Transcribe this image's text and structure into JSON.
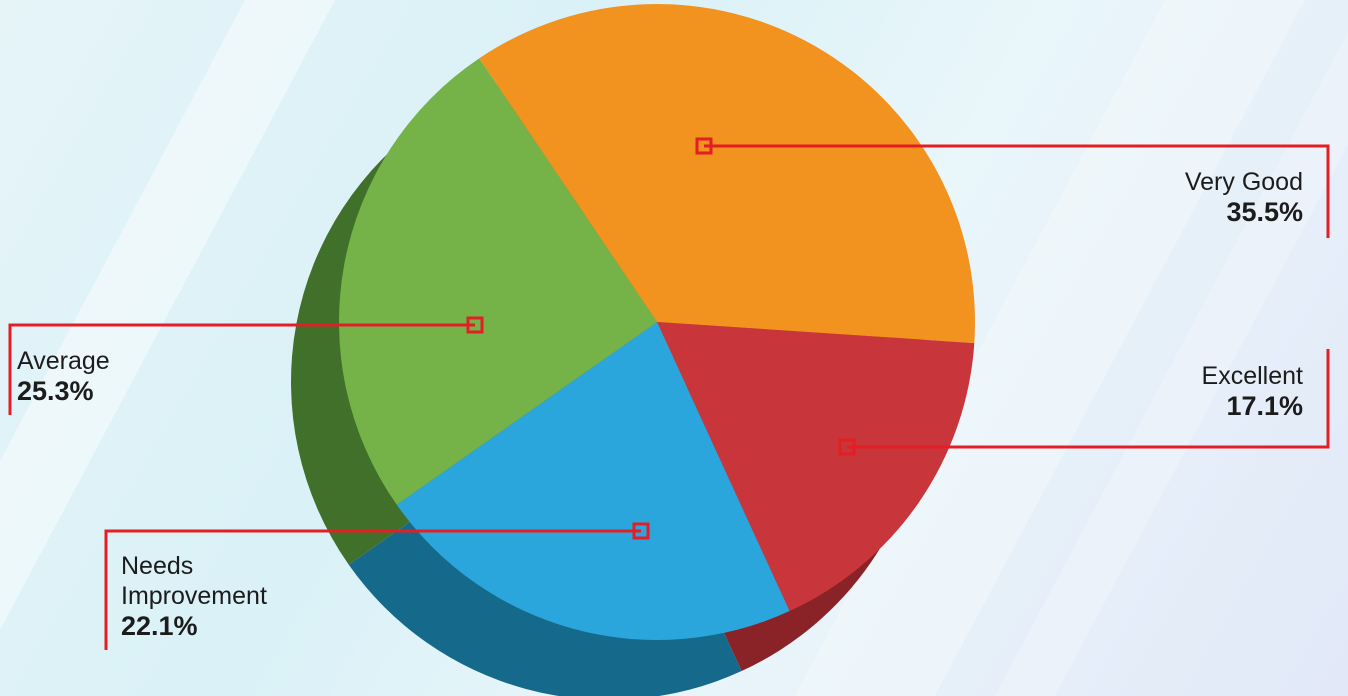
{
  "chart_data": {
    "type": "pie",
    "style": "3d",
    "labels": [
      "Very Good",
      "Excellent",
      "Needs Improvement",
      "Average"
    ],
    "values": [
      35.5,
      17.1,
      22.1,
      25.3
    ],
    "value_labels": [
      "35.5%",
      "17.1%",
      "22.1%",
      "25.3%"
    ],
    "colors": [
      "#f2921f",
      "#c8363c",
      "#2aa6dc",
      "#75b348"
    ],
    "side_colors": [
      "#b3660f",
      "#8a2327",
      "#156a8c",
      "#41702a"
    ],
    "leader_color": "#e31e24",
    "legend": "none"
  }
}
